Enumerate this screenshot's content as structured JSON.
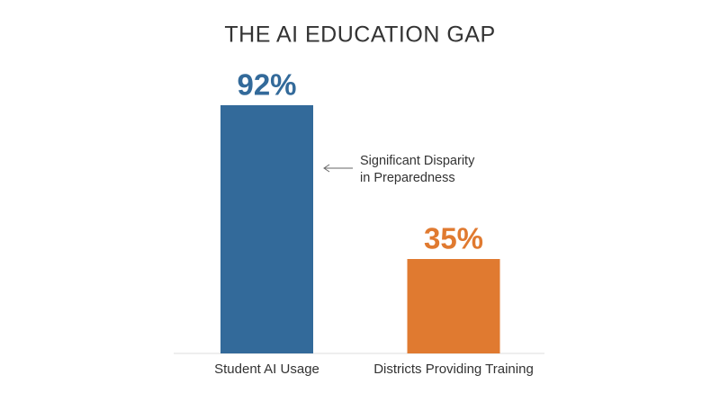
{
  "chart_data": {
    "type": "bar",
    "title": "THE AI EDUCATION GAP",
    "categories": [
      "Student AI Usage",
      "Districts Providing Training"
    ],
    "values": [
      92,
      35
    ],
    "value_labels": [
      "92%",
      "35%"
    ],
    "colors": [
      "#336a9a",
      "#e07a30"
    ],
    "annotation": [
      "Significant Disparity",
      "in Preparedness"
    ]
  }
}
